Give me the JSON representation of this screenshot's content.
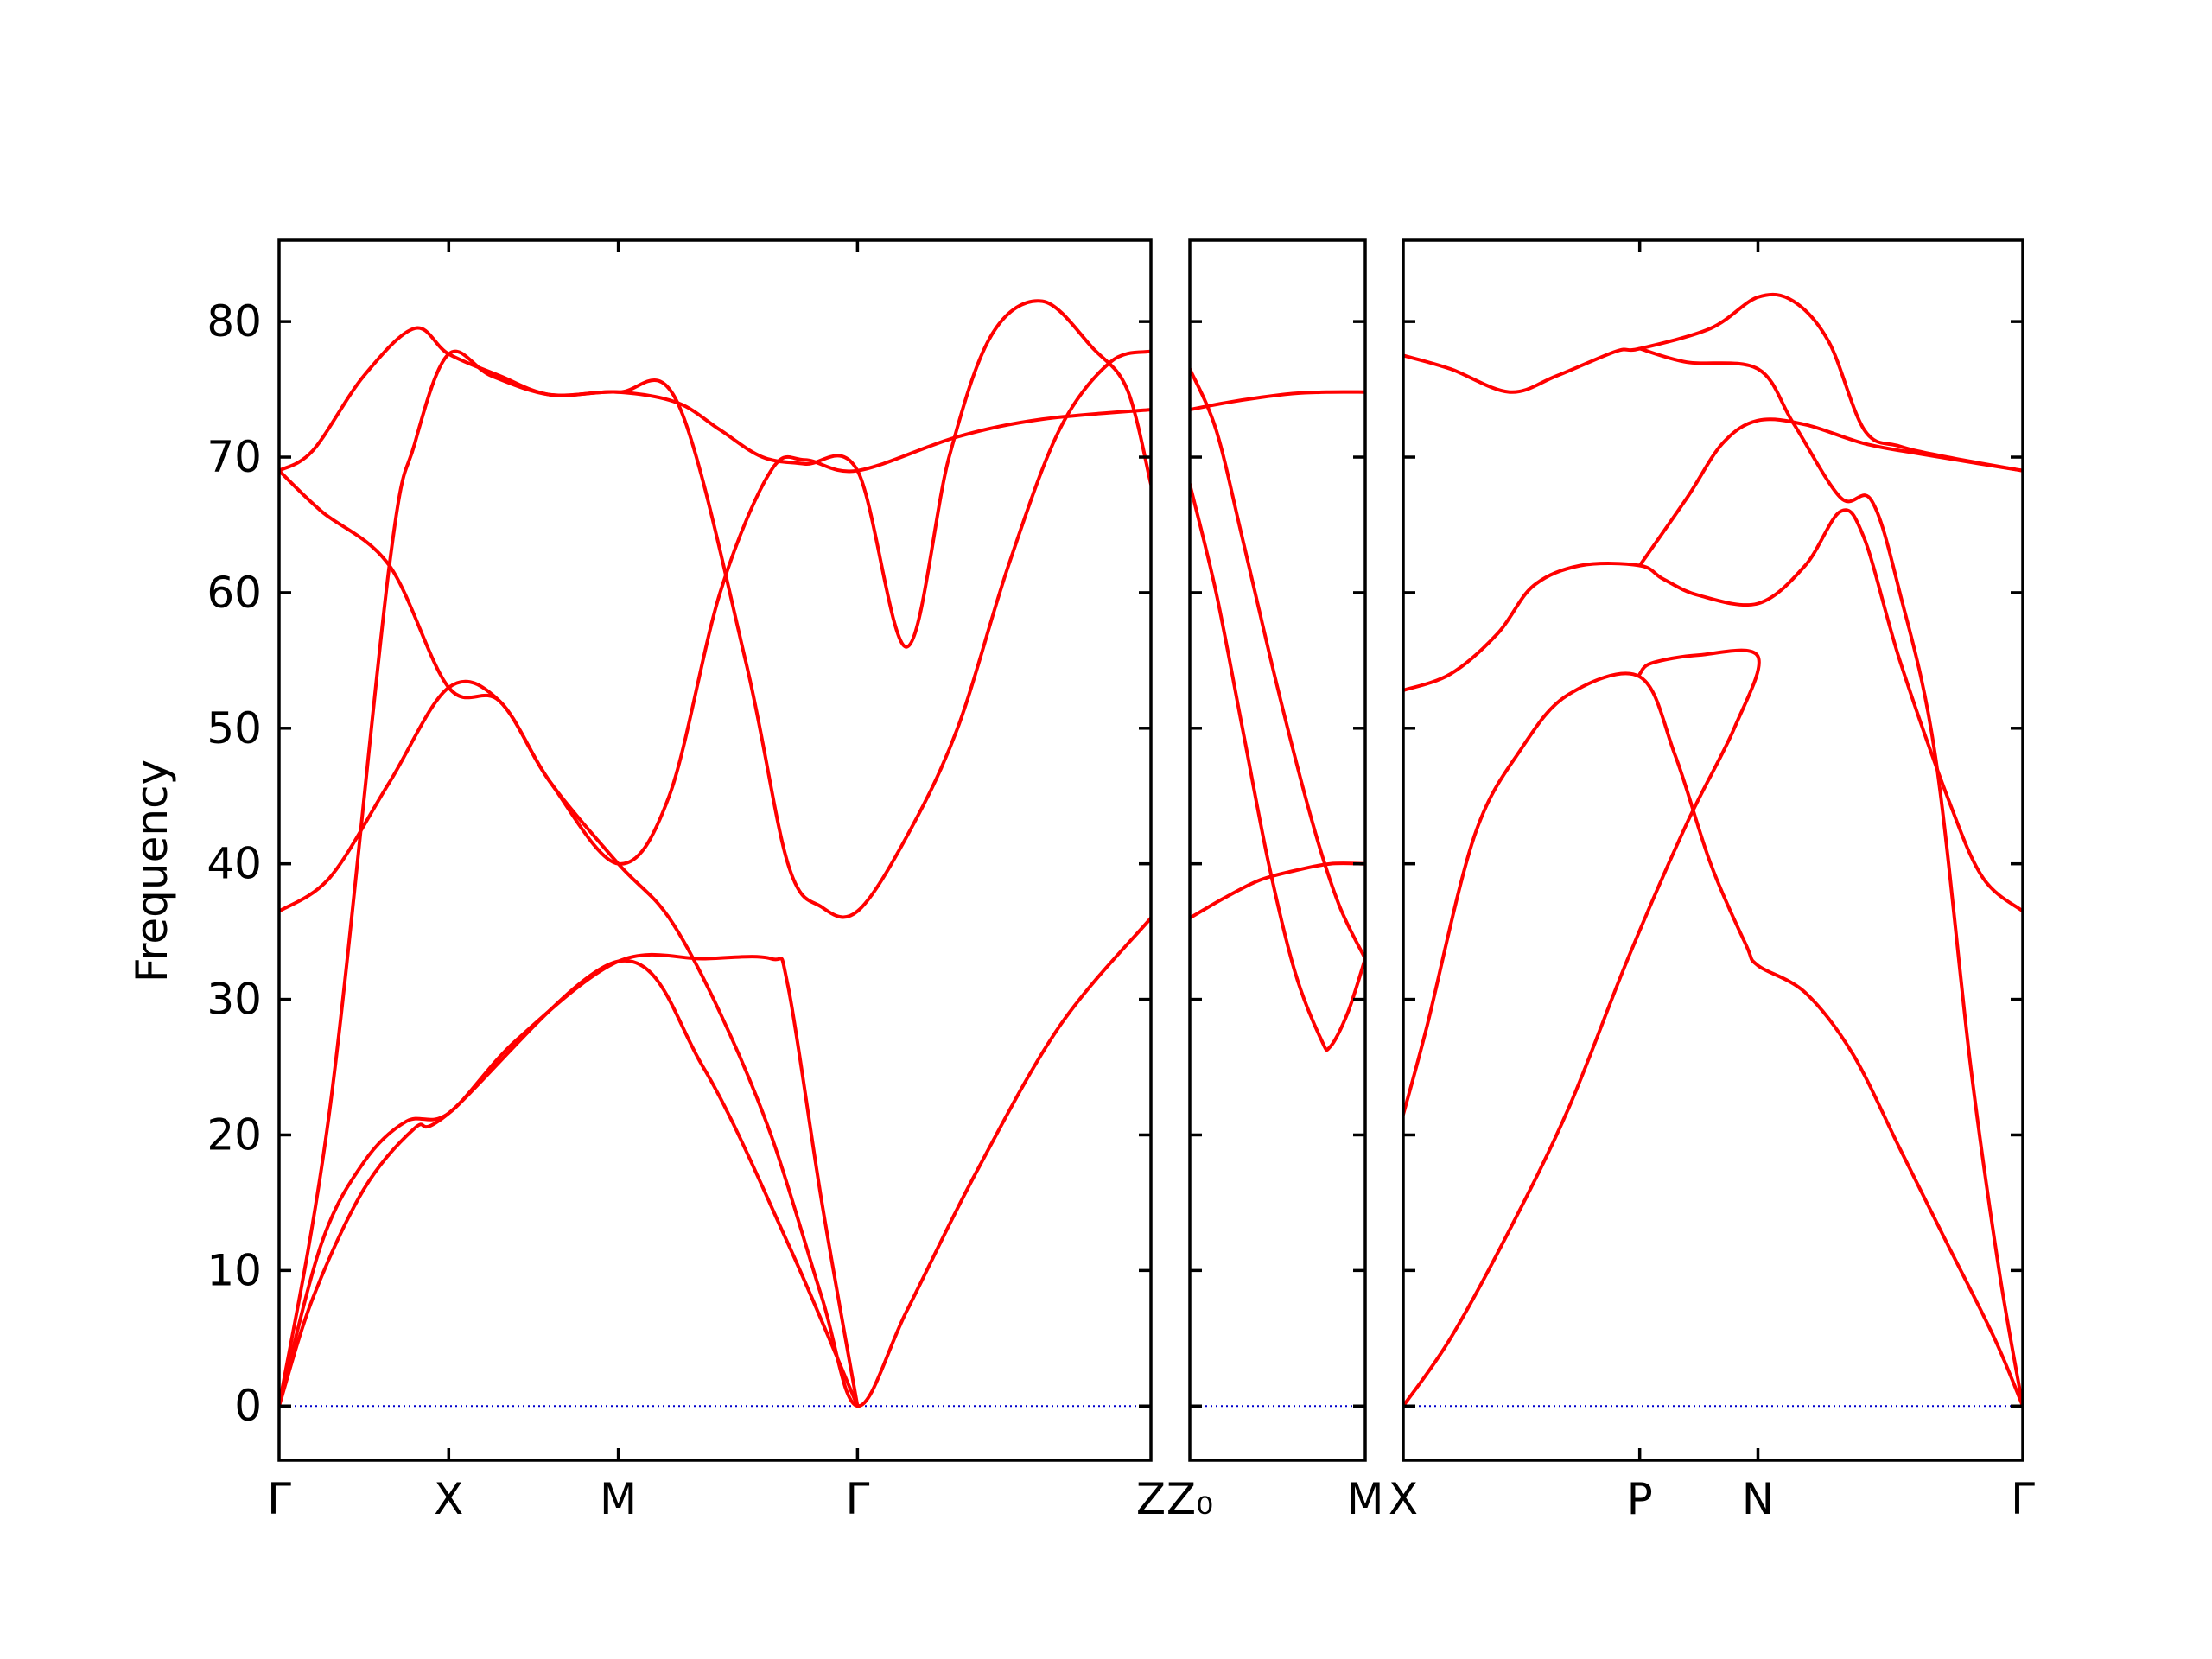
{
  "chart_data": {
    "type": "line",
    "title": "",
    "ylabel": "Frequency",
    "ylim": [
      -4,
      86
    ],
    "yticks": [
      0,
      10,
      20,
      30,
      40,
      50,
      60,
      70,
      80
    ],
    "grid": false,
    "legend": "none",
    "colors": {
      "bands": "#ff0000",
      "zero_line": "#0000cc",
      "axes": "#000000"
    },
    "panels": [
      {
        "name": "panel-1",
        "xlim": [
          0,
          5.14
        ],
        "ticks": [
          {
            "x": 0,
            "label": "Γ"
          },
          {
            "x": 1.0,
            "label": "X"
          },
          {
            "x": 2.0,
            "label": "M"
          },
          {
            "x": 3.41,
            "label": "Γ"
          },
          {
            "x": 5.14,
            "label": "Z"
          }
        ],
        "bands": [
          [
            [
              0,
              0
            ],
            [
              0.25,
              12
            ],
            [
              0.5,
              18
            ],
            [
              0.75,
              21
            ],
            [
              1.0,
              21.6
            ],
            [
              1.4,
              27
            ],
            [
              2.0,
              32.8
            ],
            [
              2.5,
              33
            ],
            [
              2.9,
              33
            ],
            [
              3.0,
              31
            ],
            [
              3.2,
              15
            ],
            [
              3.41,
              0
            ]
          ],
          [
            [
              0,
              0
            ],
            [
              0.2,
              8
            ],
            [
              0.5,
              16
            ],
            [
              0.8,
              20.5
            ],
            [
              1.0,
              21.6
            ],
            [
              2.0,
              32.8
            ],
            [
              2.5,
              25
            ],
            [
              3.0,
              12
            ],
            [
              3.41,
              0
            ]
          ],
          [
            [
              0,
              0
            ],
            [
              0.3,
              22
            ],
            [
              0.65,
              62
            ],
            [
              0.8,
              71
            ],
            [
              1.0,
              77.6
            ],
            [
              1.25,
              76
            ],
            [
              1.6,
              74.6
            ],
            [
              2.0,
              74.8
            ],
            [
              2.35,
              74
            ],
            [
              2.75,
              55
            ],
            [
              3.0,
              40
            ],
            [
              3.2,
              36.8
            ],
            [
              3.41,
              36.5
            ],
            [
              3.7,
              42
            ],
            [
              4.0,
              50
            ],
            [
              4.3,
              62
            ],
            [
              4.6,
              72
            ],
            [
              4.9,
              77
            ],
            [
              5.14,
              77.8
            ]
          ],
          [
            [
              0,
              36.5
            ],
            [
              0.3,
              39
            ],
            [
              0.65,
              46
            ],
            [
              1.0,
              53
            ],
            [
              1.3,
              52
            ],
            [
              1.6,
              46
            ],
            [
              2.0,
              40
            ],
            [
              2.3,
              45
            ],
            [
              2.6,
              60
            ],
            [
              2.9,
              69
            ],
            [
              3.1,
              69.8
            ],
            [
              3.41,
              69
            ],
            [
              4.0,
              71.5
            ],
            [
              4.5,
              72.8
            ],
            [
              5.14,
              73.5
            ]
          ],
          [
            [
              0,
              69
            ],
            [
              0.25,
              66
            ],
            [
              0.65,
              62
            ],
            [
              1.0,
              53
            ],
            [
              1.3,
              52
            ],
            [
              1.6,
              46
            ],
            [
              2.0,
              40
            ],
            [
              2.3,
              36
            ],
            [
              2.6,
              29
            ],
            [
              2.9,
              20
            ],
            [
              3.2,
              8
            ],
            [
              3.41,
              0
            ],
            [
              3.7,
              7
            ],
            [
              4.1,
              17
            ],
            [
              4.6,
              28
            ],
            [
              5.14,
              36
            ]
          ],
          [
            [
              0,
              69
            ],
            [
              0.2,
              70.5
            ],
            [
              0.5,
              76
            ],
            [
              0.8,
              79.5
            ],
            [
              1.0,
              77.6
            ],
            [
              1.3,
              76
            ],
            [
              1.6,
              74.6
            ],
            [
              2.0,
              74.8
            ],
            [
              2.35,
              74
            ],
            [
              2.6,
              72
            ],
            [
              2.85,
              70
            ],
            [
              3.1,
              69.5
            ],
            [
              3.41,
              69
            ],
            [
              3.7,
              56
            ],
            [
              3.95,
              70
            ],
            [
              4.2,
              79
            ],
            [
              4.5,
              81.5
            ],
            [
              4.8,
              78
            ],
            [
              5.0,
              75
            ],
            [
              5.14,
              68
            ]
          ]
        ]
      },
      {
        "name": "panel-2",
        "xlim": [
          0,
          1.0
        ],
        "ticks": [
          {
            "x": 0,
            "label": "Z₀"
          },
          {
            "x": 1.0,
            "label": "M"
          }
        ],
        "bands": [
          [
            [
              0,
              36
            ],
            [
              0.2,
              37.5
            ],
            [
              0.4,
              38.8
            ],
            [
              0.6,
              39.5
            ],
            [
              0.8,
              40
            ],
            [
              1.0,
              40
            ]
          ],
          [
            [
              0,
              68
            ],
            [
              0.15,
              60
            ],
            [
              0.3,
              50
            ],
            [
              0.45,
              40
            ],
            [
              0.6,
              32
            ],
            [
              0.75,
              27
            ],
            [
              0.8,
              26.5
            ],
            [
              0.9,
              29
            ],
            [
              1.0,
              33
            ]
          ],
          [
            [
              0,
              76.5
            ],
            [
              0.15,
              72
            ],
            [
              0.3,
              64
            ],
            [
              0.5,
              53
            ],
            [
              0.7,
              43
            ],
            [
              0.85,
              37
            ],
            [
              1.0,
              33
            ]
          ],
          [
            [
              0,
              73.5
            ],
            [
              0.2,
              74
            ],
            [
              0.4,
              74.4
            ],
            [
              0.6,
              74.7
            ],
            [
              0.8,
              74.8
            ],
            [
              1.0,
              74.8
            ]
          ]
        ]
      },
      {
        "name": "panel-3",
        "xlim": [
          0,
          2.62
        ],
        "ticks": [
          {
            "x": 0,
            "label": "X"
          },
          {
            "x": 1.0,
            "label": "P"
          },
          {
            "x": 1.5,
            "label": "N"
          },
          {
            "x": 2.62,
            "label": "Γ"
          }
        ],
        "bands": [
          [
            [
              0,
              21.5
            ],
            [
              0.1,
              28
            ],
            [
              0.3,
              42
            ],
            [
              0.5,
              48.5
            ],
            [
              0.7,
              52.5
            ],
            [
              1.0,
              53.8
            ],
            [
              1.15,
              48
            ],
            [
              1.3,
              40
            ],
            [
              1.45,
              34
            ],
            [
              1.5,
              32.5
            ],
            [
              1.7,
              30.5
            ],
            [
              1.9,
              26
            ],
            [
              2.1,
              19
            ],
            [
              2.3,
              12
            ],
            [
              2.5,
              5
            ],
            [
              2.62,
              0
            ]
          ],
          [
            [
              0,
              52.8
            ],
            [
              0.2,
              54
            ],
            [
              0.4,
              57
            ],
            [
              0.55,
              60.5
            ],
            [
              0.75,
              62
            ],
            [
              1.0,
              62
            ],
            [
              1.1,
              61
            ],
            [
              1.25,
              59.8
            ],
            [
              1.5,
              59.2
            ],
            [
              1.7,
              62
            ],
            [
              1.85,
              66
            ],
            [
              1.95,
              64
            ],
            [
              2.1,
              55
            ],
            [
              2.3,
              45
            ],
            [
              2.45,
              39
            ],
            [
              2.62,
              36.5
            ]
          ],
          [
            [
              0,
              77.5
            ],
            [
              0.2,
              76.5
            ],
            [
              0.45,
              74.8
            ],
            [
              0.65,
              76
            ],
            [
              0.9,
              77.8
            ],
            [
              1.0,
              78
            ],
            [
              1.3,
              79.5
            ],
            [
              1.5,
              81.8
            ],
            [
              1.65,
              81.5
            ],
            [
              1.8,
              78.5
            ],
            [
              1.95,
              72
            ],
            [
              2.1,
              70.8
            ],
            [
              2.3,
              70
            ],
            [
              2.62,
              69
            ]
          ],
          [
            [
              0,
              0
            ],
            [
              0.2,
              5
            ],
            [
              0.45,
              13
            ],
            [
              0.7,
              22
            ],
            [
              0.95,
              33
            ],
            [
              1.2,
              43
            ],
            [
              1.4,
              50
            ],
            [
              1.5,
              55.3
            ],
            [
              1.25,
              55.4
            ],
            [
              1.05,
              54.8
            ],
            [
              1.0,
              54
            ]
          ],
          [
            [
              1.0,
              62
            ],
            [
              1.2,
              67
            ],
            [
              1.35,
              71
            ],
            [
              1.5,
              72.7
            ],
            [
              1.7,
              72.4
            ],
            [
              1.95,
              71
            ],
            [
              2.2,
              70.2
            ],
            [
              2.62,
              69
            ]
          ],
          [
            [
              1.0,
              78
            ],
            [
              1.2,
              77
            ],
            [
              1.5,
              76.5
            ],
            [
              1.65,
              72.5
            ],
            [
              1.85,
              67
            ],
            [
              1.98,
              66.8
            ],
            [
              2.1,
              60
            ],
            [
              2.25,
              48
            ],
            [
              2.4,
              25
            ],
            [
              2.52,
              10
            ],
            [
              2.62,
              0
            ]
          ]
        ]
      }
    ]
  }
}
